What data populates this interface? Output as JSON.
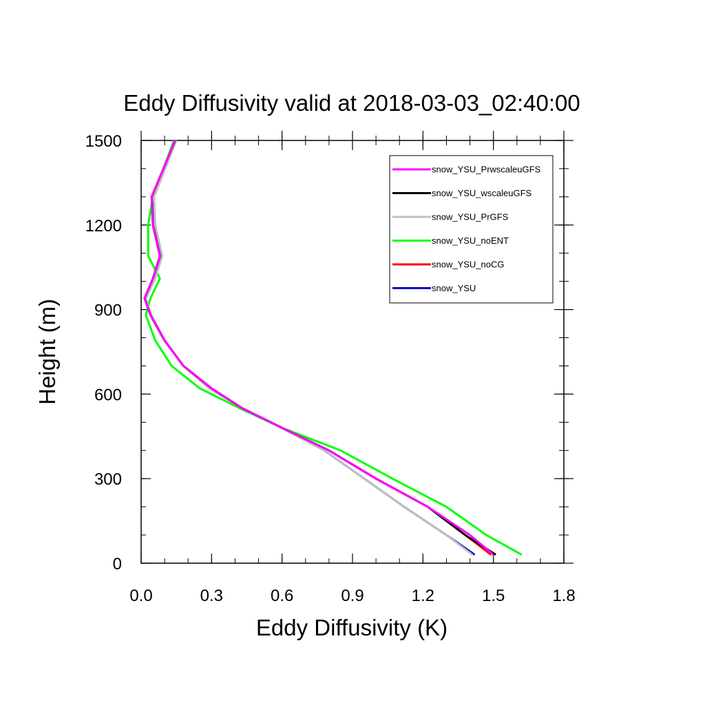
{
  "chart_data": {
    "type": "line",
    "title": "Eddy Diffusivity valid at 2018-03-03_02:40:00",
    "xlabel": "Eddy Diffusivity (K)",
    "ylabel": "Height (m)",
    "xlim": [
      0,
      1.8
    ],
    "ylim": [
      0,
      1500
    ],
    "xticks": [
      "0.0",
      "0.3",
      "0.6",
      "0.9",
      "1.2",
      "1.5",
      "1.8"
    ],
    "yticks": [
      "0",
      "300",
      "600",
      "900",
      "1200",
      "1500"
    ],
    "legend_position": "top-right",
    "grid": false,
    "series": [
      {
        "name": "snow_YSU_PrwscaleuGFS",
        "color": "#ff00ff",
        "x": [
          1.5,
          1.4,
          1.22,
          1.0,
          0.8,
          0.6,
          0.43,
          0.3,
          0.18,
          0.1,
          0.04,
          0.015,
          0.05,
          0.08,
          0.05,
          0.045,
          0.145
        ],
        "y": [
          30,
          100,
          200,
          300,
          400,
          480,
          550,
          620,
          700,
          790,
          880,
          940,
          1010,
          1090,
          1200,
          1300,
          1500
        ]
      },
      {
        "name": "snow_YSU_wscaleuGFS",
        "color": "#000000",
        "x": [
          1.51,
          1.38,
          1.22,
          1.0,
          0.8,
          0.6,
          0.43,
          0.3,
          0.18,
          0.1,
          0.04,
          0.015,
          0.05,
          0.08,
          0.05,
          0.045,
          0.145
        ],
        "y": [
          30,
          100,
          200,
          300,
          400,
          480,
          550,
          620,
          700,
          790,
          880,
          940,
          1010,
          1090,
          1200,
          1300,
          1500
        ]
      },
      {
        "name": "snow_YSU_PrGFS",
        "color": "#c0c0c0",
        "x": [
          1.41,
          1.3,
          1.12,
          0.95,
          0.78,
          0.6,
          0.43,
          0.29,
          0.18,
          0.1,
          0.045,
          0.02,
          0.06,
          0.09,
          0.06,
          0.055,
          0.15
        ],
        "y": [
          30,
          100,
          200,
          300,
          400,
          480,
          550,
          620,
          700,
          790,
          880,
          940,
          1010,
          1090,
          1200,
          1300,
          1500
        ]
      },
      {
        "name": "snow_YSU_noENT",
        "color": "#00ff00",
        "x": [
          1.62,
          1.47,
          1.3,
          1.07,
          0.85,
          0.6,
          0.42,
          0.25,
          0.13,
          0.06,
          0.02,
          0.04,
          0.08,
          0.03,
          0.03,
          0.05,
          0.14
        ],
        "y": [
          30,
          100,
          200,
          300,
          400,
          480,
          550,
          620,
          700,
          790,
          880,
          940,
          1010,
          1090,
          1200,
          1300,
          1500
        ]
      },
      {
        "name": "snow_YSU_noCG",
        "color": "#ff0000",
        "x": [
          1.49,
          1.38,
          1.22,
          1.0,
          0.8,
          0.6,
          0.43,
          0.3,
          0.18,
          0.1,
          0.04,
          0.015,
          0.05,
          0.08,
          0.05,
          0.045,
          0.145
        ],
        "y": [
          30,
          100,
          200,
          300,
          400,
          480,
          550,
          620,
          700,
          790,
          880,
          940,
          1010,
          1090,
          1200,
          1300,
          1500
        ]
      },
      {
        "name": "snow_YSU",
        "color": "#0000cc",
        "x": [
          1.42,
          1.3,
          1.12,
          0.95,
          0.78,
          0.6,
          0.43,
          0.3,
          0.18,
          0.1,
          0.04,
          0.015,
          0.05,
          0.085,
          0.06,
          0.05,
          0.145
        ],
        "y": [
          30,
          100,
          200,
          300,
          400,
          480,
          550,
          620,
          700,
          790,
          880,
          940,
          1010,
          1090,
          1200,
          1300,
          1500
        ]
      }
    ]
  }
}
